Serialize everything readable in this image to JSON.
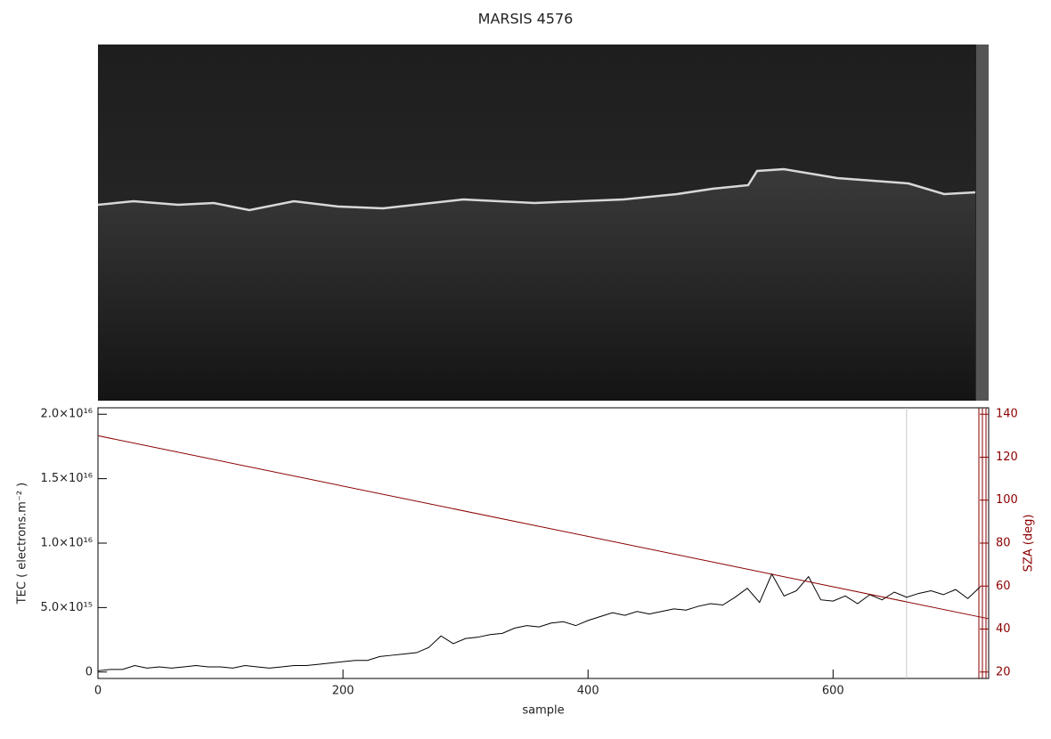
{
  "chart_data": {
    "type": "line",
    "title": "MARSIS 4576",
    "x_label": "sample",
    "y_label": "TEC ( electrons.m⁻² )",
    "y2_label": "SZA (deg)",
    "xlim": [
      0,
      727
    ],
    "xticks": [
      0,
      200,
      400,
      600
    ],
    "ylim": [
      -500000000000000.0,
      2.05e+16
    ],
    "yticks": [
      0,
      {
        "value": 5000000000000000.0,
        "label": "5.0×10¹⁵"
      },
      {
        "value": 1e+16,
        "label": "1.0×10¹⁶"
      },
      {
        "value": 1.5e+16,
        "label": "1.5×10¹⁶"
      },
      {
        "value": 2e+16,
        "label": "2.0×10¹⁶"
      }
    ],
    "y2lim": [
      17,
      143
    ],
    "y2ticks": [
      20,
      40,
      60,
      80,
      100,
      120,
      140
    ],
    "y2_color": "#8b0000",
    "vline": 660,
    "series": [
      {
        "color": "#000000",
        "x": [
          0,
          10,
          20,
          30,
          40,
          50,
          60,
          70,
          80,
          90,
          100,
          110,
          120,
          130,
          140,
          150,
          160,
          170,
          180,
          190,
          200,
          210,
          220,
          230,
          240,
          250,
          260,
          270,
          280,
          290,
          300,
          310,
          320,
          330,
          340,
          350,
          360,
          370,
          380,
          390,
          400,
          410,
          420,
          430,
          440,
          450,
          460,
          470,
          480,
          490,
          500,
          510,
          520,
          530,
          540,
          550,
          560,
          570,
          580,
          590,
          600,
          610,
          620,
          630,
          640,
          650,
          660,
          670,
          680,
          690,
          700,
          710,
          720
        ],
        "values": [
          100000000000000.0,
          200000000000000.0,
          200000000000000.0,
          500000000000000.0,
          300000000000000.0,
          400000000000000.0,
          300000000000000.0,
          400000000000000.0,
          500000000000000.0,
          400000000000000.0,
          400000000000000.0,
          300000000000000.0,
          500000000000000.0,
          400000000000000.0,
          300000000000000.0,
          400000000000000.0,
          500000000000000.0,
          500000000000000.0,
          600000000000000.0,
          700000000000000.0,
          800000000000000.0,
          900000000000000.0,
          900000000000000.0,
          1200000000000000.0,
          1300000000000000.0,
          1400000000000000.0,
          1500000000000000.0,
          1900000000000000.0,
          2800000000000000.0,
          2200000000000000.0,
          2600000000000000.0,
          2700000000000000.0,
          2900000000000000.0,
          3000000000000000.0,
          3400000000000000.0,
          3600000000000000.0,
          3500000000000000.0,
          3800000000000000.0,
          3900000000000000.0,
          3600000000000000.0,
          4000000000000000.0,
          4300000000000000.0,
          4600000000000000.0,
          4400000000000000.0,
          4700000000000000.0,
          4500000000000000.0,
          4700000000000000.0,
          4900000000000000.0,
          4800000000000000.0,
          5100000000000000.0,
          5300000000000000.0,
          5200000000000000.0,
          5800000000000000.0,
          6500000000000000.0,
          5400000000000000.0,
          7600000000000000.0,
          5900000000000000.0,
          6300000000000000.0,
          7400000000000000.0,
          5600000000000000.0,
          5500000000000000.0,
          5900000000000000.0,
          5300000000000000.0,
          6000000000000000.0,
          5600000000000000.0,
          6200000000000000.0,
          5800000000000000.0,
          6100000000000000.0,
          6300000000000000.0,
          6000000000000000.0,
          6400000000000000.0,
          5700000000000000.0,
          6600000000000000.0
        ]
      },
      {
        "color": "#8b0000",
        "axis": "y2",
        "x": [
          0,
          727
        ],
        "values": [
          130,
          44.8
        ]
      }
    ]
  }
}
